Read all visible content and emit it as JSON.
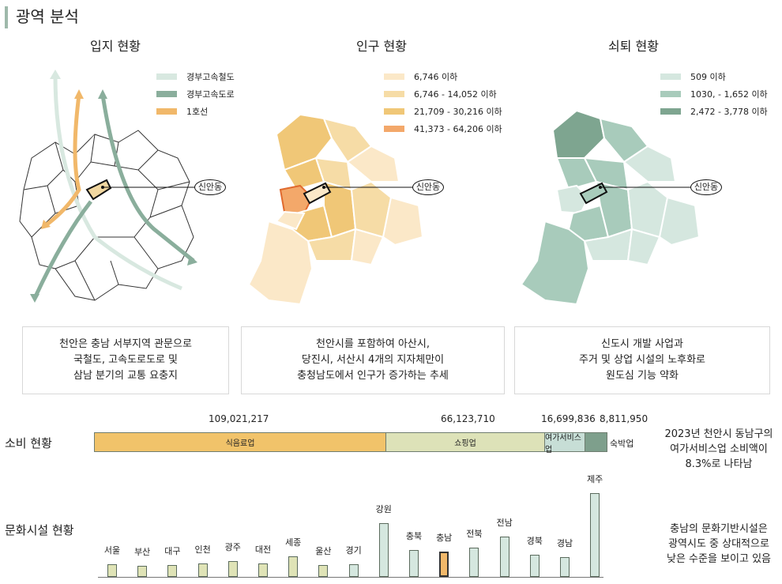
{
  "page_title": "광역 분석",
  "maps": [
    {
      "title": "입지 현황",
      "legend": [
        {
          "label": "경부고속철도",
          "color": "#d8e8e0"
        },
        {
          "label": "경부고속도로",
          "color": "#8aae9c"
        },
        {
          "label": "1호선",
          "color": "#f1b86a"
        }
      ],
      "callout": "신안동"
    },
    {
      "title": "인구 현황",
      "legend": [
        {
          "label": "6,746 이하",
          "color": "#fbe8c8"
        },
        {
          "label": "6,746 - 14,052 이하",
          "color": "#f6dca6"
        },
        {
          "label": "21,709 - 30,216 이하",
          "color": "#f0c777"
        },
        {
          "label": "41,373 - 64,206 이하",
          "color": "#f3a86a"
        }
      ],
      "callout": "신안동"
    },
    {
      "title": "쇠퇴 현황",
      "legend": [
        {
          "label": "509 이하",
          "color": "#d5e7df"
        },
        {
          "label": "1030, - 1,652 이하",
          "color": "#a8cbbb"
        },
        {
          "label": "2,472 - 3,778 이하",
          "color": "#7ea590"
        }
      ],
      "callout": "신안동"
    }
  ],
  "descriptions": [
    [
      "천안은 충남 서부지역 관문으로",
      "국철도, 고속도로도로 및",
      "삼남 분기의 교통 요충지"
    ],
    [
      "천안시를 포함하여 아산시,",
      "당진시, 서산시 4개의 지자체만이",
      "충청남도에서 인구가 증가하는 추세"
    ],
    [
      "신도시 개발 사업과",
      "주거 및 상업 시설의 노후화로",
      "원도심 기능 약화"
    ]
  ],
  "consumption": {
    "label": "소비 현황",
    "segments": [
      {
        "name": "식음료업",
        "value": "109,021,217",
        "color": "#f1c36a"
      },
      {
        "name": "쇼핑업",
        "value": "66,123,710",
        "color": "#dde2b8"
      },
      {
        "name": "여가서비스업",
        "value": "16,699,836",
        "color": "#c7ded6"
      },
      {
        "name": "숙박업",
        "value": "8,811,950",
        "color": "#7e9f8c"
      }
    ],
    "note": [
      "2023년 천안시 동남구의",
      "여가서비스업 소비액이",
      "8.3%로 나타남"
    ]
  },
  "culture": {
    "label": "문화시설 현황",
    "regions": [
      {
        "name": "서울",
        "value": 16,
        "color": "#dfe3b6"
      },
      {
        "name": "부산",
        "value": 14,
        "color": "#dfe3b6"
      },
      {
        "name": "대구",
        "value": 15,
        "color": "#dfe3b6"
      },
      {
        "name": "인천",
        "value": 17,
        "color": "#dfe3b6"
      },
      {
        "name": "광주",
        "value": 20,
        "color": "#dfe3b6"
      },
      {
        "name": "대전",
        "value": 17,
        "color": "#dfe3b6"
      },
      {
        "name": "세종",
        "value": 26,
        "color": "#dfe3b6"
      },
      {
        "name": "울산",
        "value": 15,
        "color": "#dfe3b6"
      },
      {
        "name": "경기",
        "value": 16,
        "color": "#d5e7df"
      },
      {
        "name": "강원",
        "value": 68,
        "color": "#d5e7df"
      },
      {
        "name": "충북",
        "value": 34,
        "color": "#d5e7df"
      },
      {
        "name": "충남",
        "value": 32,
        "color": "#f1b86a"
      },
      {
        "name": "전북",
        "value": 37,
        "color": "#d5e7df"
      },
      {
        "name": "전남",
        "value": 51,
        "color": "#d5e7df"
      },
      {
        "name": "경북",
        "value": 28,
        "color": "#d5e7df"
      },
      {
        "name": "경남",
        "value": 25,
        "color": "#d5e7df"
      },
      {
        "name": "제주",
        "value": 106,
        "color": "#d5e7df"
      }
    ],
    "note": [
      "충남의 문화기반시설은",
      "광역시도 중 상대적으로",
      "낮은 수준을 보이고 있음"
    ]
  }
}
